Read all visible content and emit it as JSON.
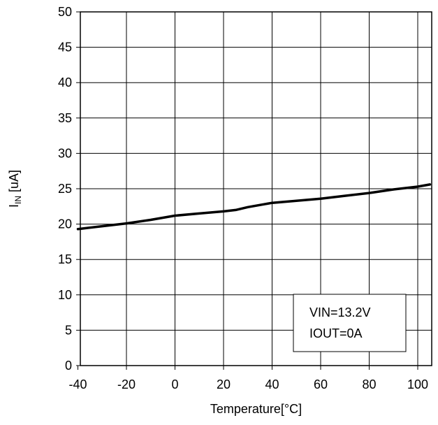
{
  "chart_data": {
    "type": "line",
    "xlabel": "Temperature[°C]",
    "ylabel": {
      "main": "I",
      "sub": "IN",
      "unit": " [uA]"
    },
    "xlim": [
      -40,
      105
    ],
    "ylim": [
      0,
      50
    ],
    "xticks": [
      -40,
      -20,
      0,
      20,
      40,
      60,
      80,
      100
    ],
    "yticks": [
      0,
      5,
      10,
      15,
      20,
      25,
      30,
      35,
      40,
      45,
      50
    ],
    "grid": true,
    "series": [
      {
        "x": [
          -40,
          -30,
          -20,
          -10,
          0,
          10,
          20,
          25,
          30,
          40,
          50,
          60,
          70,
          80,
          90,
          100,
          105
        ],
        "y": [
          19.3,
          19.7,
          20.1,
          20.6,
          21.2,
          21.5,
          21.8,
          22.0,
          22.4,
          23.0,
          23.3,
          23.6,
          24.0,
          24.4,
          24.9,
          25.3,
          25.6
        ]
      }
    ],
    "annotations": {
      "line1": "VIN=13.2V",
      "line2": "IOUT=0A",
      "placement": "bottom-right"
    }
  }
}
